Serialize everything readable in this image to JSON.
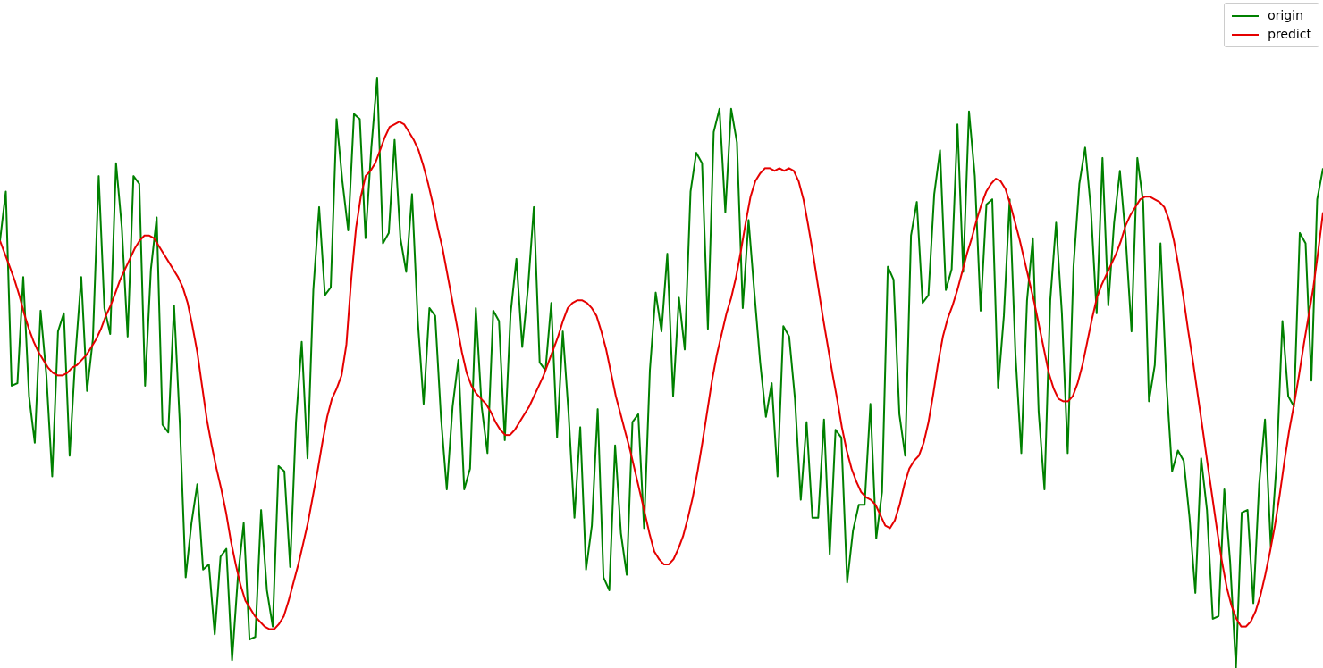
{
  "chart_data": {
    "type": "line",
    "title": "",
    "xlabel": "",
    "ylabel": "",
    "grid": false,
    "axes_visible": false,
    "legend_position": "top-right",
    "xlim": [
      0,
      217
    ],
    "ylim": [
      -1.24,
      1.34
    ],
    "series": [
      {
        "name": "origin",
        "color": "#008000",
        "values": [
          0.41,
          0.6,
          -0.15,
          -0.14,
          0.27,
          -0.19,
          -0.37,
          0.14,
          -0.11,
          -0.5,
          0.06,
          0.13,
          -0.42,
          -0.03,
          0.27,
          -0.17,
          0.03,
          0.66,
          0.15,
          0.05,
          0.71,
          0.46,
          0.04,
          0.66,
          0.63,
          -0.15,
          0.3,
          0.5,
          -0.3,
          -0.33,
          0.16,
          -0.3,
          -0.89,
          -0.68,
          -0.53,
          -0.86,
          -0.84,
          -1.11,
          -0.81,
          -0.78,
          -1.21,
          -0.89,
          -0.68,
          -1.13,
          -1.12,
          -0.63,
          -0.94,
          -1.08,
          -0.46,
          -0.48,
          -0.85,
          -0.29,
          0.02,
          -0.43,
          0.22,
          0.54,
          0.2,
          0.23,
          0.88,
          0.64,
          0.45,
          0.9,
          0.88,
          0.42,
          0.77,
          1.04,
          0.4,
          0.44,
          0.8,
          0.42,
          0.29,
          0.59,
          0.1,
          -0.22,
          0.15,
          0.12,
          -0.27,
          -0.55,
          -0.23,
          -0.05,
          -0.55,
          -0.47,
          0.15,
          -0.23,
          -0.41,
          0.14,
          0.1,
          -0.36,
          0.13,
          0.34,
          0.0,
          0.23,
          0.54,
          -0.06,
          -0.09,
          0.17,
          -0.35,
          0.06,
          -0.26,
          -0.66,
          -0.31,
          -0.86,
          -0.69,
          -0.24,
          -0.89,
          -0.94,
          -0.38,
          -0.72,
          -0.88,
          -0.29,
          -0.26,
          -0.7,
          -0.09,
          0.21,
          0.06,
          0.36,
          -0.19,
          0.19,
          -0.01,
          0.6,
          0.75,
          0.71,
          0.07,
          0.83,
          0.92,
          0.52,
          0.92,
          0.79,
          0.15,
          0.49,
          0.21,
          -0.06,
          -0.27,
          -0.14,
          -0.5,
          0.08,
          0.04,
          -0.2,
          -0.59,
          -0.29,
          -0.66,
          -0.66,
          -0.28,
          -0.8,
          -0.32,
          -0.35,
          -0.91,
          -0.71,
          -0.61,
          -0.61,
          -0.22,
          -0.74,
          -0.56,
          0.31,
          0.26,
          -0.26,
          -0.42,
          0.43,
          0.56,
          0.17,
          0.2,
          0.59,
          0.76,
          0.22,
          0.3,
          0.86,
          0.29,
          0.91,
          0.66,
          0.14,
          0.55,
          0.57,
          -0.16,
          0.12,
          0.57,
          -0.03,
          -0.41,
          0.18,
          0.42,
          -0.25,
          -0.55,
          0.18,
          0.48,
          0.13,
          -0.41,
          0.31,
          0.63,
          0.77,
          0.53,
          0.13,
          0.73,
          0.16,
          0.48,
          0.68,
          0.42,
          0.06,
          0.73,
          0.56,
          -0.21,
          -0.07,
          0.4,
          -0.13,
          -0.48,
          -0.4,
          -0.44,
          -0.66,
          -0.95,
          -0.43,
          -0.63,
          -1.05,
          -1.04,
          -0.55,
          -0.83,
          -1.24,
          -0.64,
          -0.63,
          -0.99,
          -0.53,
          -0.28,
          -0.77,
          -0.45,
          0.1,
          -0.19,
          -0.23,
          0.44,
          0.4,
          -0.13,
          0.57,
          0.69
        ]
      },
      {
        "name": "predict",
        "color": "#e50000",
        "values": [
          0.41,
          0.36,
          0.31,
          0.26,
          0.2,
          0.13,
          0.07,
          0.02,
          -0.02,
          -0.05,
          -0.08,
          -0.1,
          -0.11,
          -0.11,
          -0.1,
          -0.08,
          -0.07,
          -0.05,
          -0.03,
          0.0,
          0.03,
          0.07,
          0.12,
          0.16,
          0.21,
          0.26,
          0.3,
          0.34,
          0.38,
          0.41,
          0.43,
          0.43,
          0.42,
          0.39,
          0.36,
          0.33,
          0.3,
          0.27,
          0.23,
          0.17,
          0.08,
          -0.02,
          -0.15,
          -0.28,
          -0.38,
          -0.47,
          -0.55,
          -0.64,
          -0.75,
          -0.84,
          -0.92,
          -0.98,
          -1.01,
          -1.04,
          -1.06,
          -1.08,
          -1.09,
          -1.09,
          -1.07,
          -1.04,
          -0.98,
          -0.91,
          -0.84,
          -0.76,
          -0.68,
          -0.58,
          -0.48,
          -0.37,
          -0.27,
          -0.2,
          -0.16,
          -0.11,
          0.01,
          0.26,
          0.46,
          0.58,
          0.66,
          0.68,
          0.71,
          0.76,
          0.81,
          0.85,
          0.86,
          0.87,
          0.86,
          0.83,
          0.8,
          0.76,
          0.7,
          0.63,
          0.55,
          0.46,
          0.38,
          0.28,
          0.18,
          0.08,
          -0.02,
          -0.1,
          -0.15,
          -0.18,
          -0.2,
          -0.22,
          -0.25,
          -0.29,
          -0.32,
          -0.34,
          -0.34,
          -0.32,
          -0.29,
          -0.26,
          -0.23,
          -0.19,
          -0.15,
          -0.11,
          -0.06,
          -0.01,
          0.04,
          0.1,
          0.15,
          0.17,
          0.18,
          0.18,
          0.17,
          0.15,
          0.12,
          0.06,
          -0.01,
          -0.1,
          -0.19,
          -0.26,
          -0.33,
          -0.4,
          -0.48,
          -0.56,
          -0.64,
          -0.72,
          -0.79,
          -0.82,
          -0.84,
          -0.84,
          -0.82,
          -0.78,
          -0.73,
          -0.66,
          -0.58,
          -0.48,
          -0.37,
          -0.25,
          -0.13,
          -0.03,
          0.05,
          0.13,
          0.19,
          0.27,
          0.37,
          0.48,
          0.58,
          0.64,
          0.67,
          0.69,
          0.69,
          0.68,
          0.69,
          0.68,
          0.69,
          0.68,
          0.64,
          0.57,
          0.47,
          0.36,
          0.24,
          0.12,
          0.01,
          -0.1,
          -0.2,
          -0.31,
          -0.4,
          -0.47,
          -0.52,
          -0.56,
          -0.58,
          -0.59,
          -0.61,
          -0.65,
          -0.69,
          -0.7,
          -0.67,
          -0.61,
          -0.53,
          -0.47,
          -0.44,
          -0.42,
          -0.37,
          -0.29,
          -0.18,
          -0.06,
          0.04,
          0.11,
          0.16,
          0.22,
          0.29,
          0.36,
          0.42,
          0.49,
          0.55,
          0.6,
          0.63,
          0.65,
          0.64,
          0.61,
          0.55,
          0.48,
          0.41,
          0.33,
          0.25,
          0.17,
          0.08,
          -0.01,
          -0.1,
          -0.16,
          -0.2,
          -0.21,
          -0.21,
          -0.19,
          -0.14,
          -0.07,
          0.02,
          0.11,
          0.19,
          0.24,
          0.28,
          0.32,
          0.36,
          0.41,
          0.47,
          0.51,
          0.54,
          0.57,
          0.58,
          0.58,
          0.57,
          0.56,
          0.54,
          0.49,
          0.41,
          0.31,
          0.19,
          0.06,
          -0.06,
          -0.19,
          -0.32,
          -0.45,
          -0.58,
          -0.71,
          -0.83,
          -0.93,
          -1.0,
          -1.05,
          -1.08,
          -1.08,
          -1.06,
          -1.02,
          -0.96,
          -0.88,
          -0.79,
          -0.69,
          -0.57,
          -0.44,
          -0.32,
          -0.22,
          -0.11,
          0.01,
          0.12,
          0.23,
          0.37,
          0.52
        ]
      }
    ]
  },
  "legend": {
    "items": [
      {
        "label": "origin",
        "color": "#008000"
      },
      {
        "label": "predict",
        "color": "#e50000"
      }
    ]
  }
}
